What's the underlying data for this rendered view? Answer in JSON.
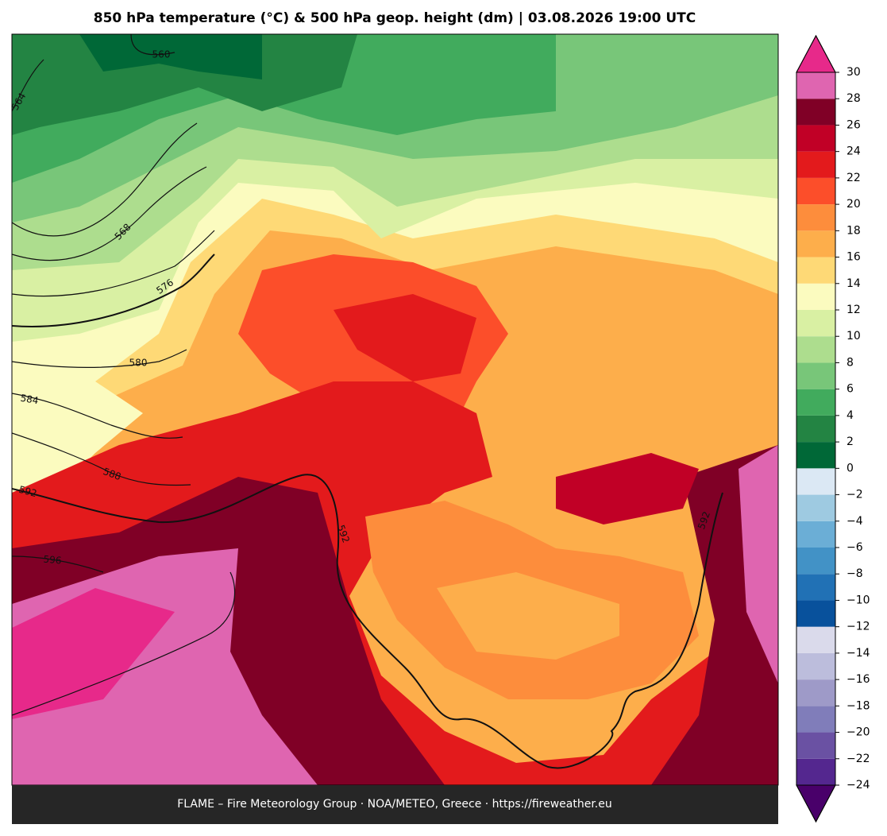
{
  "title": "850 hPa temperature (°C) & 500 hPa geop. height (dm)  |  03.08.2026 19:00 UTC",
  "footer": "FLAME – Fire Meteorology Group · NOA/METEO, Greece · https://fireweather.eu",
  "colorbar": {
    "ticks": [
      {
        "value": -24,
        "label": "−24"
      },
      {
        "value": -22,
        "label": "−22"
      },
      {
        "value": -20,
        "label": "−20"
      },
      {
        "value": -18,
        "label": "−18"
      },
      {
        "value": -16,
        "label": "−16"
      },
      {
        "value": -14,
        "label": "−14"
      },
      {
        "value": -12,
        "label": "−12"
      },
      {
        "value": -10,
        "label": "−10"
      },
      {
        "value": -8,
        "label": "−8"
      },
      {
        "value": -6,
        "label": "−6"
      },
      {
        "value": -4,
        "label": "−4"
      },
      {
        "value": -2,
        "label": "−2"
      },
      0,
      2,
      4,
      6,
      8,
      10,
      12,
      14,
      16,
      18,
      20,
      22,
      24,
      26,
      28,
      30
    ],
    "colors": [
      "#54278f",
      "#6a51a3",
      "#807dba",
      "#9e9ac8",
      "#bcbddc",
      "#dadaeb",
      "#08519c",
      "#2171b5",
      "#4292c6",
      "#6baed6",
      "#9ecae1",
      "#dbe8f4",
      "#006837",
      "#238443",
      "#41ab5d",
      "#78c679",
      "#addd8e",
      "#d9f0a3",
      "#fbfbbf",
      "#fed976",
      "#fdae4b",
      "#fd8d3c",
      "#fc4e2a",
      "#e31a1c",
      "#c10026",
      "#800026",
      "#df65b0"
    ],
    "over_color": "#e7298a",
    "under_color": "#49006a"
  },
  "contour_labels": [
    560,
    564,
    568,
    576,
    580,
    584,
    588,
    592,
    592,
    596,
    592
  ]
}
